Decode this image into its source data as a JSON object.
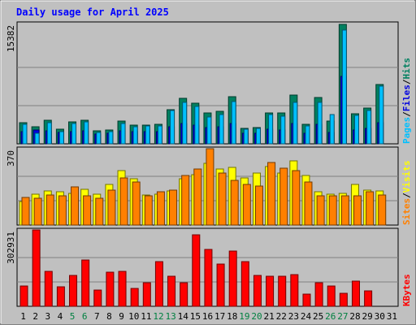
{
  "chart_data": [
    {
      "type": "bar",
      "title": "Daily usage for April 2025",
      "panel": "hits_files_pages",
      "ymax_label": "15382",
      "ylim": [
        0,
        15382
      ],
      "legend": [
        "Pages",
        "Files",
        "Hits"
      ],
      "legend_colors": [
        "#00c0ff",
        "#0000e0",
        "#008060"
      ],
      "categories": [
        "1",
        "2",
        "3",
        "4",
        "5",
        "6",
        "7",
        "8",
        "9",
        "10",
        "11",
        "12",
        "13",
        "14",
        "15",
        "16",
        "17",
        "18",
        "19",
        "20",
        "21",
        "22",
        "23",
        "24",
        "25",
        "26",
        "27",
        "28",
        "29",
        "30",
        "31"
      ],
      "weekend_days": [
        "5",
        "6",
        "12",
        "13",
        "19",
        "20",
        "26",
        "27"
      ],
      "series": [
        {
          "name": "Hits",
          "values": [
            2700,
            2200,
            3000,
            1900,
            2800,
            3000,
            1700,
            1800,
            2900,
            2400,
            2400,
            2500,
            4400,
            5800,
            5200,
            3900,
            4200,
            6000,
            2000,
            2100,
            4000,
            3900,
            6200,
            2500,
            5900,
            2900,
            15300,
            3800,
            4600,
            7600,
            0
          ]
        },
        {
          "name": "Files",
          "values": [
            1600,
            1800,
            1700,
            1500,
            1600,
            1700,
            1200,
            1300,
            1700,
            1600,
            1600,
            1600,
            2200,
            2600,
            2400,
            2100,
            2200,
            2600,
            1300,
            1400,
            1900,
            1800,
            2600,
            1400,
            2500,
            1500,
            8600,
            1800,
            2000,
            2700,
            0
          ]
        },
        {
          "name": "Pages",
          "values": [
            2500,
            1300,
            2700,
            1600,
            2600,
            2800,
            1500,
            1600,
            2600,
            2200,
            2300,
            2300,
            4300,
            5300,
            4800,
            3400,
            3700,
            5400,
            1900,
            2000,
            3700,
            3500,
            5300,
            2300,
            5300,
            3700,
            14600,
            3600,
            4300,
            7400,
            0
          ]
        }
      ]
    },
    {
      "type": "bar",
      "panel": "visits_sites",
      "ymax_label": "370",
      "ylim": [
        0,
        370
      ],
      "legend": [
        "Sites",
        "Visits"
      ],
      "legend_colors": [
        "#ff8000",
        "#ffff00"
      ],
      "categories": [
        "1",
        "2",
        "3",
        "4",
        "5",
        "6",
        "7",
        "8",
        "9",
        "10",
        "11",
        "12",
        "13",
        "14",
        "15",
        "16",
        "17",
        "18",
        "19",
        "20",
        "21",
        "22",
        "23",
        "24",
        "25",
        "26",
        "27",
        "28",
        "29",
        "30",
        "31"
      ],
      "series": [
        {
          "name": "Visits",
          "values": [
            115,
            150,
            165,
            160,
            155,
            175,
            150,
            195,
            265,
            225,
            145,
            150,
            165,
            225,
            245,
            300,
            270,
            280,
            230,
            250,
            285,
            250,
            310,
            240,
            160,
            150,
            155,
            195,
            170,
            165,
            0
          ]
        },
        {
          "name": "Sites",
          "values": [
            135,
            130,
            145,
            140,
            185,
            140,
            130,
            170,
            230,
            210,
            140,
            160,
            170,
            240,
            270,
            370,
            250,
            215,
            195,
            190,
            305,
            275,
            265,
            210,
            140,
            140,
            140,
            140,
            160,
            145,
            0
          ]
        }
      ]
    },
    {
      "type": "bar",
      "panel": "kbytes",
      "ymax_label": "302931",
      "ylim": [
        0,
        302931
      ],
      "legend": [
        "KBytes"
      ],
      "legend_colors": [
        "#ff0000"
      ],
      "categories": [
        "1",
        "2",
        "3",
        "4",
        "5",
        "6",
        "7",
        "8",
        "9",
        "10",
        "11",
        "12",
        "13",
        "14",
        "15",
        "16",
        "17",
        "18",
        "19",
        "20",
        "21",
        "22",
        "23",
        "24",
        "25",
        "26",
        "27",
        "28",
        "29",
        "30",
        "31"
      ],
      "series": [
        {
          "name": "KBytes",
          "values": [
            80000,
            308000,
            140000,
            77000,
            122000,
            183000,
            63000,
            135000,
            138000,
            70000,
            92000,
            176000,
            118000,
            92000,
            283000,
            224000,
            166000,
            219000,
            178000,
            123000,
            120000,
            120000,
            125000,
            48000,
            94000,
            80000,
            50000,
            101000,
            60000,
            0,
            0
          ]
        }
      ]
    }
  ]
}
